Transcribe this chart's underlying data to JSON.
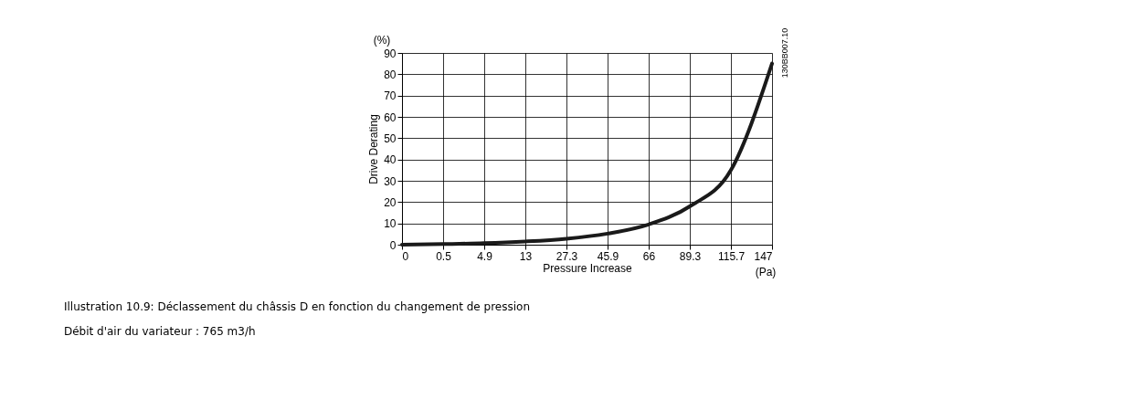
{
  "chart_data": {
    "type": "line",
    "xlabel": "Pressure Increase",
    "ylabel": "Drive Derating",
    "categories": [
      "0",
      "0.5",
      "4.9",
      "13",
      "27.3",
      "45.9",
      "66",
      "89.3",
      "115.7",
      "147"
    ],
    "values": [
      0,
      0.3,
      0.7,
      1.5,
      2.8,
      5.2,
      9.5,
      18,
      35,
      85
    ],
    "color": "#1a1a1a",
    "ylim": [
      0,
      90
    ],
    "yticks": [
      0,
      10,
      20,
      30,
      40,
      50,
      60,
      70,
      80,
      90
    ],
    "grid": true,
    "line_style": "solid",
    "annotations": [
      "(%)",
      "(Pa)",
      "130BB007.10",
      "Illustration 10.9: Déclassement du châssis D en fonction du changement de pression",
      "Débit d'air du variateur : 765 m3/h"
    ]
  }
}
